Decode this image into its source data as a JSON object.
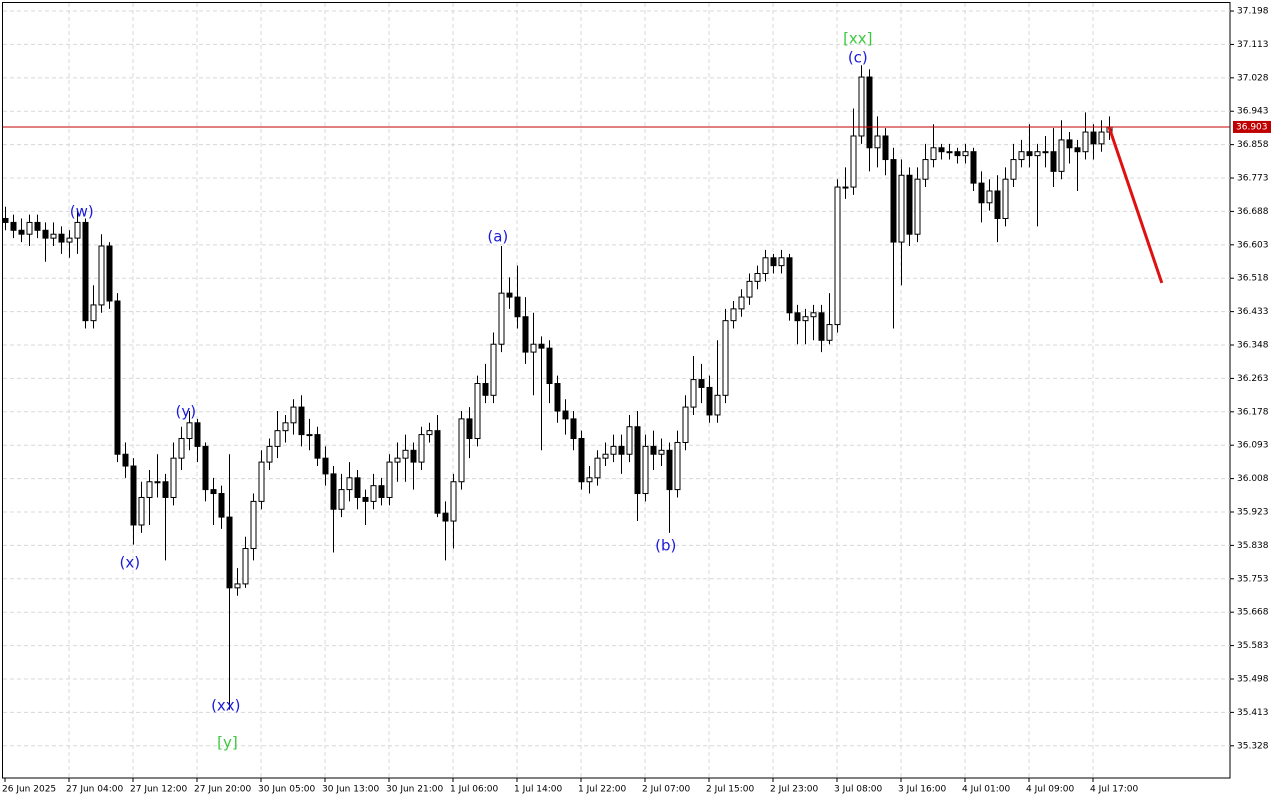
{
  "chart_data": {
    "type": "candlestick",
    "ylim": [
      35.246,
      37.221
    ],
    "xlim": [
      -0.625,
      153.125
    ],
    "yticks": [
      37.198,
      37.113,
      37.028,
      36.943,
      36.858,
      36.773,
      36.688,
      36.603,
      36.518,
      36.433,
      36.348,
      36.263,
      36.178,
      36.093,
      36.008,
      35.923,
      35.838,
      35.753,
      35.668,
      35.583,
      35.498,
      35.413,
      35.328
    ],
    "xticks": [
      {
        "value": 0,
        "label": "26 Jun 2025"
      },
      {
        "value": 8,
        "label": "27 Jun 04:00"
      },
      {
        "value": 16,
        "label": "27 Jun 12:00"
      },
      {
        "value": 24,
        "label": "27 Jun 20:00"
      },
      {
        "value": 32,
        "label": "30 Jun 05:00"
      },
      {
        "value": 40,
        "label": "30 Jun 13:00"
      },
      {
        "value": 48,
        "label": "30 Jun 21:00"
      },
      {
        "value": 56,
        "label": "1 Jul 06:00"
      },
      {
        "value": 64,
        "label": "1 Jul 14:00"
      },
      {
        "value": 72,
        "label": "1 Jul 22:00"
      },
      {
        "value": 80,
        "label": "2 Jul 07:00"
      },
      {
        "value": 88,
        "label": "2 Jul 15:00"
      },
      {
        "value": 96,
        "label": "2 Jul 23:00"
      },
      {
        "value": 104,
        "label": "3 Jul 08:00"
      },
      {
        "value": 112,
        "label": "3 Jul 16:00"
      },
      {
        "value": 120,
        "label": "4 Jul 01:00"
      },
      {
        "value": 128,
        "label": "4 Jul 09:00"
      },
      {
        "value": 136,
        "label": "4 Jul 17:00"
      }
    ],
    "grid": true,
    "up_color": "#ffffff",
    "down_color": "#000000",
    "wick_color": "#000000",
    "last_price": 36.903,
    "last_price_color": "#c00000",
    "ohlc": [
      [
        36.67,
        36.7,
        36.64,
        36.66
      ],
      [
        36.66,
        36.68,
        36.62,
        36.64
      ],
      [
        36.64,
        36.67,
        36.61,
        36.63
      ],
      [
        36.63,
        36.68,
        36.6,
        36.66
      ],
      [
        36.66,
        36.68,
        36.62,
        36.64
      ],
      [
        36.64,
        36.66,
        36.56,
        36.62
      ],
      [
        36.62,
        36.66,
        36.6,
        36.63
      ],
      [
        36.63,
        36.65,
        36.58,
        36.61
      ],
      [
        36.61,
        36.64,
        36.57,
        36.62
      ],
      [
        36.62,
        36.69,
        36.58,
        36.66
      ],
      [
        36.66,
        36.67,
        36.39,
        36.41
      ],
      [
        36.41,
        36.5,
        36.39,
        36.45
      ],
      [
        36.45,
        36.63,
        36.43,
        36.6
      ],
      [
        36.6,
        36.61,
        36.44,
        36.46
      ],
      [
        36.46,
        36.48,
        36.05,
        36.07
      ],
      [
        36.07,
        36.1,
        36.01,
        36.04
      ],
      [
        36.04,
        36.06,
        35.84,
        35.89
      ],
      [
        35.89,
        36.0,
        35.87,
        35.96
      ],
      [
        35.96,
        36.03,
        35.89,
        36.0
      ],
      [
        36.0,
        36.07,
        35.96,
        36.0
      ],
      [
        36.0,
        36.02,
        35.8,
        35.96
      ],
      [
        35.96,
        36.1,
        35.94,
        36.06
      ],
      [
        36.06,
        36.14,
        36.03,
        36.11
      ],
      [
        36.11,
        36.18,
        36.08,
        36.15
      ],
      [
        36.15,
        36.16,
        36.05,
        36.09
      ],
      [
        36.09,
        36.1,
        35.95,
        35.98
      ],
      [
        35.98,
        36.01,
        35.89,
        35.97
      ],
      [
        35.97,
        35.99,
        35.88,
        35.91
      ],
      [
        35.91,
        36.07,
        35.42,
        35.73
      ],
      [
        35.73,
        35.78,
        35.71,
        35.74
      ],
      [
        35.74,
        35.86,
        35.73,
        35.83
      ],
      [
        35.83,
        35.97,
        35.8,
        35.95
      ],
      [
        35.95,
        36.08,
        35.93,
        36.05
      ],
      [
        36.05,
        36.11,
        36.03,
        36.09
      ],
      [
        36.09,
        36.18,
        36.06,
        36.13
      ],
      [
        36.13,
        36.17,
        36.1,
        36.15
      ],
      [
        36.15,
        36.21,
        36.12,
        36.19
      ],
      [
        36.19,
        36.22,
        36.09,
        36.12
      ],
      [
        36.12,
        36.16,
        36.08,
        36.12
      ],
      [
        36.12,
        36.14,
        36.04,
        36.06
      ],
      [
        36.06,
        36.09,
        35.99,
        36.02
      ],
      [
        36.02,
        36.04,
        35.82,
        35.93
      ],
      [
        35.93,
        36.02,
        35.91,
        35.98
      ],
      [
        35.98,
        36.05,
        35.95,
        36.01
      ],
      [
        36.01,
        36.03,
        35.93,
        35.96
      ],
      [
        35.96,
        35.98,
        35.89,
        35.95
      ],
      [
        35.95,
        36.02,
        35.93,
        35.99
      ],
      [
        35.99,
        36.01,
        35.94,
        35.96
      ],
      [
        35.96,
        36.07,
        35.94,
        36.05
      ],
      [
        36.05,
        36.1,
        36.0,
        36.06
      ],
      [
        36.06,
        36.12,
        36.0,
        36.08
      ],
      [
        36.08,
        36.1,
        35.98,
        36.05
      ],
      [
        36.05,
        36.14,
        36.03,
        36.12
      ],
      [
        36.12,
        36.15,
        36.1,
        36.13
      ],
      [
        36.13,
        36.17,
        35.91,
        35.92
      ],
      [
        35.92,
        35.95,
        35.8,
        35.9
      ],
      [
        35.9,
        36.02,
        35.83,
        36.0
      ],
      [
        36.0,
        36.18,
        35.98,
        36.16
      ],
      [
        36.16,
        36.19,
        36.06,
        36.11
      ],
      [
        36.11,
        36.27,
        36.09,
        36.25
      ],
      [
        36.25,
        36.3,
        36.2,
        36.22
      ],
      [
        36.22,
        36.38,
        36.2,
        36.35
      ],
      [
        36.35,
        36.6,
        36.33,
        36.48
      ],
      [
        36.48,
        36.52,
        36.44,
        36.47
      ],
      [
        36.47,
        36.55,
        36.39,
        36.42
      ],
      [
        36.42,
        36.47,
        36.3,
        36.33
      ],
      [
        36.33,
        36.43,
        36.22,
        36.35
      ],
      [
        36.35,
        36.37,
        36.08,
        36.34
      ],
      [
        36.34,
        36.36,
        36.2,
        36.25
      ],
      [
        36.25,
        36.27,
        36.15,
        36.18
      ],
      [
        36.18,
        36.21,
        36.12,
        36.16
      ],
      [
        36.16,
        36.18,
        36.08,
        36.11
      ],
      [
        36.11,
        36.13,
        35.98,
        36.0
      ],
      [
        36.0,
        36.04,
        35.97,
        36.01
      ],
      [
        36.01,
        36.08,
        35.99,
        36.06
      ],
      [
        36.06,
        36.1,
        36.04,
        36.07
      ],
      [
        36.07,
        36.12,
        36.05,
        36.09
      ],
      [
        36.09,
        36.12,
        36.02,
        36.07
      ],
      [
        36.07,
        36.17,
        36.05,
        36.14
      ],
      [
        36.14,
        36.18,
        35.9,
        35.97
      ],
      [
        35.97,
        36.12,
        35.95,
        36.09
      ],
      [
        36.09,
        36.13,
        36.03,
        36.07
      ],
      [
        36.07,
        36.11,
        36.04,
        36.08
      ],
      [
        36.08,
        36.1,
        35.87,
        35.98
      ],
      [
        35.98,
        36.13,
        35.96,
        36.1
      ],
      [
        36.1,
        36.22,
        36.08,
        36.19
      ],
      [
        36.19,
        36.32,
        36.17,
        36.26
      ],
      [
        36.26,
        36.3,
        36.2,
        36.24
      ],
      [
        36.24,
        36.27,
        36.15,
        36.17
      ],
      [
        36.17,
        36.36,
        36.15,
        36.22
      ],
      [
        36.22,
        36.44,
        36.2,
        36.41
      ],
      [
        36.41,
        36.46,
        36.39,
        36.44
      ],
      [
        36.44,
        36.49,
        36.42,
        36.47
      ],
      [
        36.47,
        36.53,
        36.45,
        36.51
      ],
      [
        36.51,
        36.55,
        36.49,
        36.53
      ],
      [
        36.53,
        36.59,
        36.51,
        36.57
      ],
      [
        36.57,
        36.58,
        36.53,
        36.55
      ],
      [
        36.55,
        36.59,
        36.53,
        36.57
      ],
      [
        36.57,
        36.58,
        36.41,
        36.43
      ],
      [
        36.43,
        36.45,
        36.35,
        36.41
      ],
      [
        36.41,
        36.44,
        36.35,
        36.42
      ],
      [
        36.42,
        36.45,
        36.36,
        36.43
      ],
      [
        36.43,
        36.45,
        36.33,
        36.36
      ],
      [
        36.36,
        36.48,
        36.35,
        36.4
      ],
      [
        36.4,
        36.77,
        36.38,
        36.75
      ],
      [
        36.75,
        36.8,
        36.72,
        36.75
      ],
      [
        36.75,
        36.95,
        36.73,
        36.88
      ],
      [
        36.88,
        37.06,
        36.86,
        37.03
      ],
      [
        37.03,
        37.05,
        36.79,
        36.85
      ],
      [
        36.85,
        36.93,
        36.8,
        36.88
      ],
      [
        36.88,
        36.9,
        36.78,
        36.82
      ],
      [
        36.82,
        36.85,
        36.39,
        36.61
      ],
      [
        36.61,
        36.82,
        36.5,
        36.78
      ],
      [
        36.78,
        36.8,
        36.6,
        36.63
      ],
      [
        36.63,
        36.8,
        36.61,
        36.77
      ],
      [
        36.77,
        36.86,
        36.75,
        36.82
      ],
      [
        36.82,
        36.91,
        36.8,
        36.85
      ],
      [
        36.85,
        36.86,
        36.82,
        36.84
      ],
      [
        36.84,
        36.86,
        36.82,
        36.84
      ],
      [
        36.84,
        36.85,
        36.81,
        36.83
      ],
      [
        36.83,
        36.86,
        36.81,
        36.84
      ],
      [
        36.84,
        36.85,
        36.74,
        36.76
      ],
      [
        36.76,
        36.79,
        36.66,
        36.71
      ],
      [
        36.71,
        36.77,
        36.69,
        36.74
      ],
      [
        36.74,
        36.78,
        36.61,
        36.67
      ],
      [
        36.67,
        36.8,
        36.65,
        36.77
      ],
      [
        36.77,
        36.86,
        36.75,
        36.82
      ],
      [
        36.82,
        36.87,
        36.8,
        36.84
      ],
      [
        36.84,
        36.91,
        36.8,
        36.83
      ],
      [
        36.83,
        36.86,
        36.65,
        36.84
      ],
      [
        36.84,
        36.88,
        36.8,
        36.84
      ],
      [
        36.84,
        36.9,
        36.75,
        36.79
      ],
      [
        36.79,
        36.92,
        36.77,
        36.87
      ],
      [
        36.87,
        36.89,
        36.81,
        36.85
      ],
      [
        36.85,
        36.87,
        36.74,
        36.84
      ],
      [
        36.84,
        36.94,
        36.82,
        36.89
      ],
      [
        36.89,
        36.91,
        36.82,
        36.86
      ],
      [
        36.86,
        36.92,
        36.84,
        36.89
      ],
      [
        36.89,
        36.93,
        36.87,
        36.903
      ]
    ],
    "annotations": [
      {
        "text": "(w)",
        "x": 9.6,
        "y": 36.686,
        "color": "#1a1adc"
      },
      {
        "text": "(x)",
        "x": 15.6,
        "y": 35.793,
        "color": "#1a1adc"
      },
      {
        "text": "(y)",
        "x": 22.6,
        "y": 36.177,
        "color": "#1a1adc"
      },
      {
        "text": "(xx)",
        "x": 27.6,
        "y": 35.429,
        "color": "#1a1adc"
      },
      {
        "text": "[y]",
        "x": 27.8,
        "y": 35.335,
        "color": "#3cc83c"
      },
      {
        "text": "(a)",
        "x": 61.6,
        "y": 36.623,
        "color": "#1a1adc"
      },
      {
        "text": "(b)",
        "x": 82.6,
        "y": 35.837,
        "color": "#1a1adc"
      },
      {
        "text": "(c)",
        "x": 106.6,
        "y": 37.078,
        "color": "#1a1adc"
      },
      {
        "text": "[xx]",
        "x": 106.6,
        "y": 37.127,
        "color": "#3cc83c"
      }
    ],
    "forecast": {
      "x": [
        138,
        144.6
      ],
      "y": [
        36.903,
        36.506
      ],
      "color": "#e01010"
    }
  }
}
